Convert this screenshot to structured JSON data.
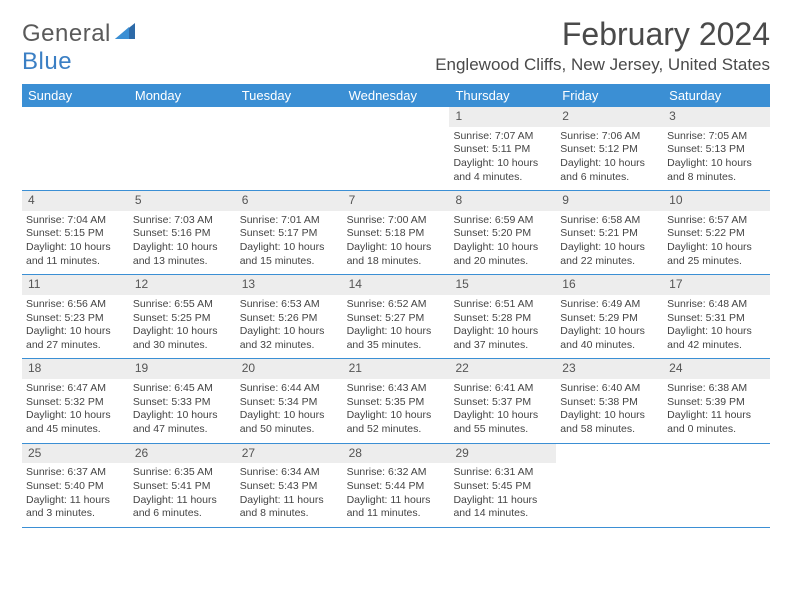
{
  "brand": {
    "text1": "General",
    "text2": "Blue"
  },
  "title": "February 2024",
  "location": "Englewood Cliffs, New Jersey, United States",
  "colors": {
    "header_bg": "#3b8fd4",
    "header_text": "#ffffff",
    "daynum_bg": "#ededed",
    "border": "#3b8fd4",
    "text": "#444444"
  },
  "weekdays": [
    "Sunday",
    "Monday",
    "Tuesday",
    "Wednesday",
    "Thursday",
    "Friday",
    "Saturday"
  ],
  "weeks": [
    [
      null,
      null,
      null,
      null,
      {
        "num": "1",
        "sunrise": "Sunrise: 7:07 AM",
        "sunset": "Sunset: 5:11 PM",
        "daylight": "Daylight: 10 hours and 4 minutes."
      },
      {
        "num": "2",
        "sunrise": "Sunrise: 7:06 AM",
        "sunset": "Sunset: 5:12 PM",
        "daylight": "Daylight: 10 hours and 6 minutes."
      },
      {
        "num": "3",
        "sunrise": "Sunrise: 7:05 AM",
        "sunset": "Sunset: 5:13 PM",
        "daylight": "Daylight: 10 hours and 8 minutes."
      }
    ],
    [
      {
        "num": "4",
        "sunrise": "Sunrise: 7:04 AM",
        "sunset": "Sunset: 5:15 PM",
        "daylight": "Daylight: 10 hours and 11 minutes."
      },
      {
        "num": "5",
        "sunrise": "Sunrise: 7:03 AM",
        "sunset": "Sunset: 5:16 PM",
        "daylight": "Daylight: 10 hours and 13 minutes."
      },
      {
        "num": "6",
        "sunrise": "Sunrise: 7:01 AM",
        "sunset": "Sunset: 5:17 PM",
        "daylight": "Daylight: 10 hours and 15 minutes."
      },
      {
        "num": "7",
        "sunrise": "Sunrise: 7:00 AM",
        "sunset": "Sunset: 5:18 PM",
        "daylight": "Daylight: 10 hours and 18 minutes."
      },
      {
        "num": "8",
        "sunrise": "Sunrise: 6:59 AM",
        "sunset": "Sunset: 5:20 PM",
        "daylight": "Daylight: 10 hours and 20 minutes."
      },
      {
        "num": "9",
        "sunrise": "Sunrise: 6:58 AM",
        "sunset": "Sunset: 5:21 PM",
        "daylight": "Daylight: 10 hours and 22 minutes."
      },
      {
        "num": "10",
        "sunrise": "Sunrise: 6:57 AM",
        "sunset": "Sunset: 5:22 PM",
        "daylight": "Daylight: 10 hours and 25 minutes."
      }
    ],
    [
      {
        "num": "11",
        "sunrise": "Sunrise: 6:56 AM",
        "sunset": "Sunset: 5:23 PM",
        "daylight": "Daylight: 10 hours and 27 minutes."
      },
      {
        "num": "12",
        "sunrise": "Sunrise: 6:55 AM",
        "sunset": "Sunset: 5:25 PM",
        "daylight": "Daylight: 10 hours and 30 minutes."
      },
      {
        "num": "13",
        "sunrise": "Sunrise: 6:53 AM",
        "sunset": "Sunset: 5:26 PM",
        "daylight": "Daylight: 10 hours and 32 minutes."
      },
      {
        "num": "14",
        "sunrise": "Sunrise: 6:52 AM",
        "sunset": "Sunset: 5:27 PM",
        "daylight": "Daylight: 10 hours and 35 minutes."
      },
      {
        "num": "15",
        "sunrise": "Sunrise: 6:51 AM",
        "sunset": "Sunset: 5:28 PM",
        "daylight": "Daylight: 10 hours and 37 minutes."
      },
      {
        "num": "16",
        "sunrise": "Sunrise: 6:49 AM",
        "sunset": "Sunset: 5:29 PM",
        "daylight": "Daylight: 10 hours and 40 minutes."
      },
      {
        "num": "17",
        "sunrise": "Sunrise: 6:48 AM",
        "sunset": "Sunset: 5:31 PM",
        "daylight": "Daylight: 10 hours and 42 minutes."
      }
    ],
    [
      {
        "num": "18",
        "sunrise": "Sunrise: 6:47 AM",
        "sunset": "Sunset: 5:32 PM",
        "daylight": "Daylight: 10 hours and 45 minutes."
      },
      {
        "num": "19",
        "sunrise": "Sunrise: 6:45 AM",
        "sunset": "Sunset: 5:33 PM",
        "daylight": "Daylight: 10 hours and 47 minutes."
      },
      {
        "num": "20",
        "sunrise": "Sunrise: 6:44 AM",
        "sunset": "Sunset: 5:34 PM",
        "daylight": "Daylight: 10 hours and 50 minutes."
      },
      {
        "num": "21",
        "sunrise": "Sunrise: 6:43 AM",
        "sunset": "Sunset: 5:35 PM",
        "daylight": "Daylight: 10 hours and 52 minutes."
      },
      {
        "num": "22",
        "sunrise": "Sunrise: 6:41 AM",
        "sunset": "Sunset: 5:37 PM",
        "daylight": "Daylight: 10 hours and 55 minutes."
      },
      {
        "num": "23",
        "sunrise": "Sunrise: 6:40 AM",
        "sunset": "Sunset: 5:38 PM",
        "daylight": "Daylight: 10 hours and 58 minutes."
      },
      {
        "num": "24",
        "sunrise": "Sunrise: 6:38 AM",
        "sunset": "Sunset: 5:39 PM",
        "daylight": "Daylight: 11 hours and 0 minutes."
      }
    ],
    [
      {
        "num": "25",
        "sunrise": "Sunrise: 6:37 AM",
        "sunset": "Sunset: 5:40 PM",
        "daylight": "Daylight: 11 hours and 3 minutes."
      },
      {
        "num": "26",
        "sunrise": "Sunrise: 6:35 AM",
        "sunset": "Sunset: 5:41 PM",
        "daylight": "Daylight: 11 hours and 6 minutes."
      },
      {
        "num": "27",
        "sunrise": "Sunrise: 6:34 AM",
        "sunset": "Sunset: 5:43 PM",
        "daylight": "Daylight: 11 hours and 8 minutes."
      },
      {
        "num": "28",
        "sunrise": "Sunrise: 6:32 AM",
        "sunset": "Sunset: 5:44 PM",
        "daylight": "Daylight: 11 hours and 11 minutes."
      },
      {
        "num": "29",
        "sunrise": "Sunrise: 6:31 AM",
        "sunset": "Sunset: 5:45 PM",
        "daylight": "Daylight: 11 hours and 14 minutes."
      },
      null,
      null
    ]
  ]
}
